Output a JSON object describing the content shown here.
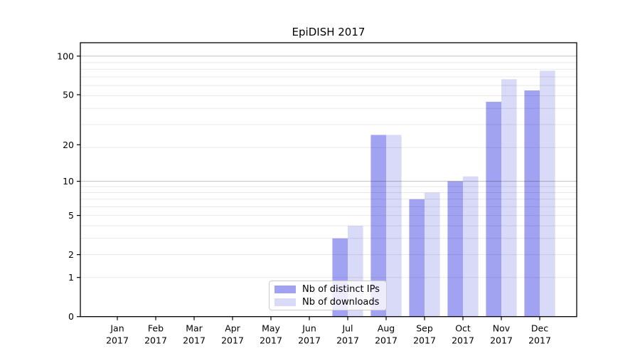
{
  "chart_data": {
    "type": "bar",
    "title": "EpiDISH 2017",
    "categories": [
      "Jan 2017",
      "Feb 2017",
      "Mar 2017",
      "Apr 2017",
      "May 2017",
      "Jun 2017",
      "Jul 2017",
      "Aug 2017",
      "Sep 2017",
      "Oct 2017",
      "Nov 2017",
      "Dec 2017"
    ],
    "series": [
      {
        "name": "Nb of distinct IPs",
        "color": "#a2a2f2",
        "values": [
          0,
          0,
          0,
          0,
          0,
          0,
          3,
          24,
          7,
          10,
          44,
          54
        ]
      },
      {
        "name": "Nb of downloads",
        "color": "#d9d9f8",
        "values": [
          0,
          0,
          0,
          0,
          0,
          0,
          4,
          24,
          8,
          11,
          66,
          77
        ]
      }
    ],
    "xlabel": "",
    "ylabel": "",
    "yscale": "log1p",
    "yticks": [
      0,
      1,
      2,
      5,
      10,
      20,
      50,
      100
    ],
    "ylim": [
      0,
      127
    ],
    "grid": {
      "on": true,
      "minor_lines": [
        1,
        2,
        3,
        4,
        5,
        6,
        7,
        8,
        9,
        19,
        29,
        39,
        49,
        59,
        69,
        79,
        89
      ],
      "major_lines": [
        10,
        100
      ],
      "minor_color": "rgba(0,0,0,0.09)",
      "major_color": "rgba(0,0,0,0.22)"
    },
    "legend_position": "lower center",
    "axis_color": "#000000"
  }
}
